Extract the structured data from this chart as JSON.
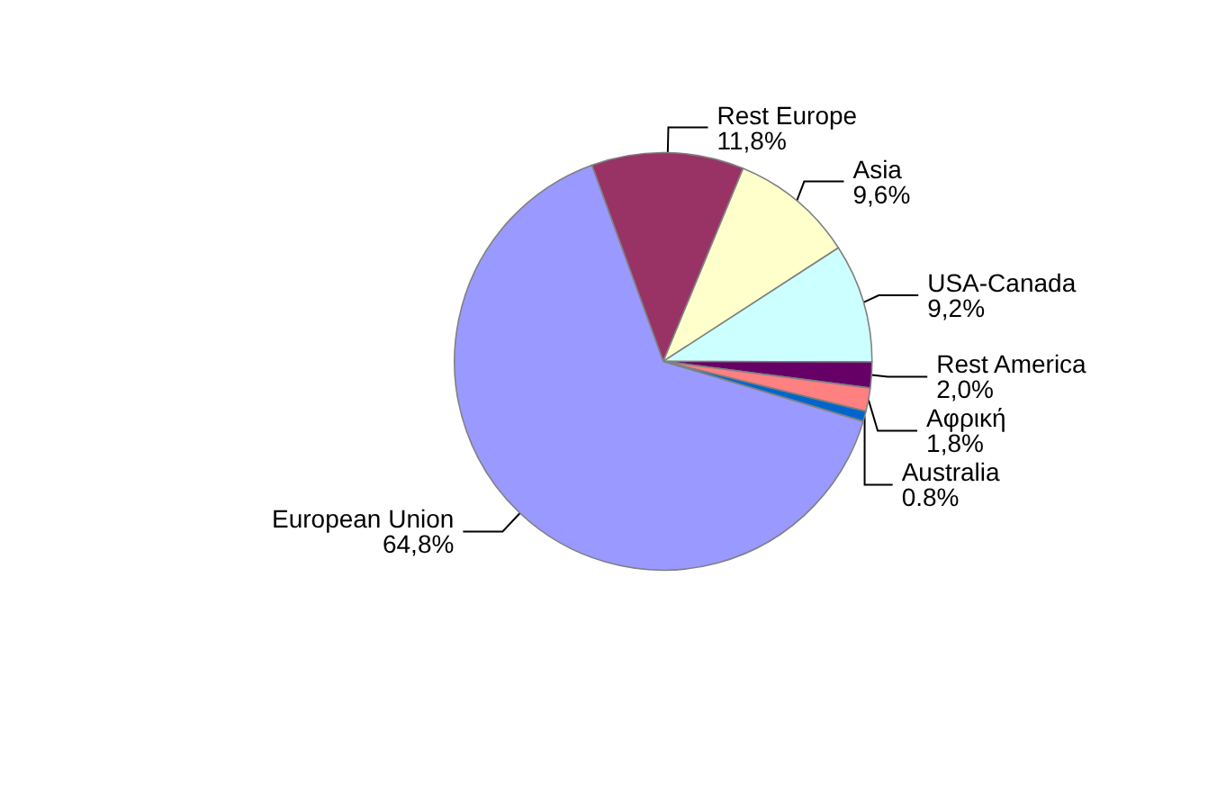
{
  "chart_data": {
    "type": "pie",
    "categories": [
      "Rest Europe",
      "Asia",
      "USA-Canada",
      "Rest America",
      "Αφρική",
      "Australia",
      "European Union"
    ],
    "values": [
      11.8,
      9.6,
      9.2,
      2.0,
      1.8,
      0.8,
      64.8
    ],
    "value_labels": [
      "11,8%",
      "9,6%",
      "9,2%",
      "2,0%",
      "1,8%",
      "0.8%",
      "64,8%"
    ],
    "colors": [
      "#993366",
      "#ffffcc",
      "#ccffff",
      "#660066",
      "#ff8080",
      "#0066cc",
      "#9999ff"
    ],
    "legend": false
  }
}
